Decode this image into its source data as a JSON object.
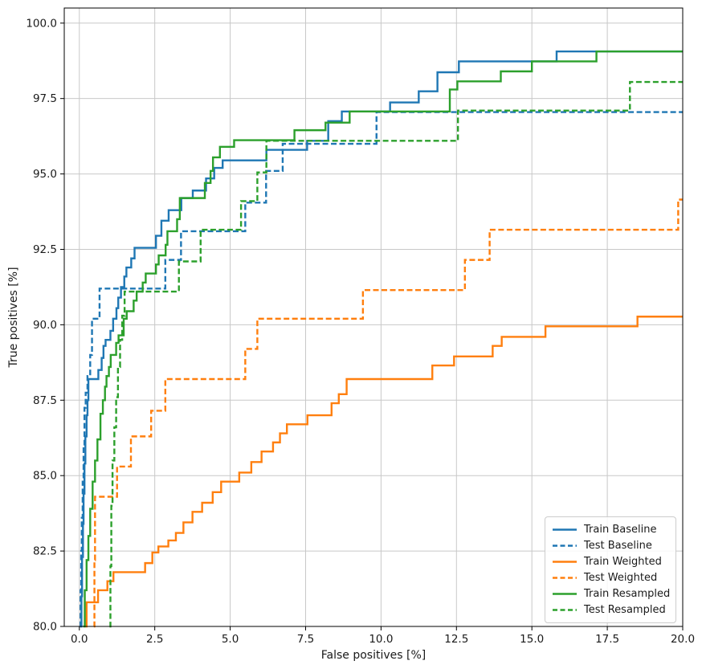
{
  "figure": {
    "background": "#ffffff"
  },
  "axes": {
    "xlabel": "False positives [%]",
    "ylabel": "True positives [%]",
    "x_ticks": [
      0.0,
      2.5,
      5.0,
      7.5,
      10.0,
      12.5,
      15.0,
      17.5,
      20.0
    ],
    "x_tick_labels": [
      "0.0",
      "2.5",
      "5.0",
      "7.5",
      "10.0",
      "12.5",
      "15.0",
      "17.5",
      "20.0"
    ],
    "y_ticks": [
      80.0,
      82.5,
      85.0,
      87.5,
      90.0,
      92.5,
      95.0,
      97.5,
      100.0
    ],
    "y_tick_labels": [
      "80.0",
      "82.5",
      "85.0",
      "87.5",
      "90.0",
      "92.5",
      "95.0",
      "97.5",
      "100.0"
    ],
    "grid_color": "#c8c8c8",
    "spine_color": "#000000",
    "text_color": "#1a1a1a"
  },
  "chart_data": {
    "type": "line",
    "subtype": "roc-step-curves",
    "title": "",
    "xlabel": "False positives [%]",
    "ylabel": "True positives [%]",
    "xlim": [
      -0.5,
      20
    ],
    "ylim": [
      80,
      100.5
    ],
    "grid": true,
    "legend_position": "lower right",
    "step_mode": "post",
    "series": [
      {
        "name": "Train Baseline",
        "color": "#1f77b4",
        "style": "solid",
        "points": [
          [
            0.05,
            80
          ],
          [
            0.07,
            81.0
          ],
          [
            0.09,
            82.3
          ],
          [
            0.12,
            83.4
          ],
          [
            0.14,
            84.4
          ],
          [
            0.17,
            85.4
          ],
          [
            0.2,
            86.3
          ],
          [
            0.24,
            87.0
          ],
          [
            0.27,
            87.5
          ],
          [
            0.3,
            88.2
          ],
          [
            0.63,
            88.5
          ],
          [
            0.74,
            88.9
          ],
          [
            0.8,
            89.3
          ],
          [
            0.87,
            89.5
          ],
          [
            1.03,
            89.8
          ],
          [
            1.12,
            90.2
          ],
          [
            1.23,
            90.55
          ],
          [
            1.29,
            90.9
          ],
          [
            1.38,
            91.25
          ],
          [
            1.49,
            91.6
          ],
          [
            1.56,
            91.9
          ],
          [
            1.72,
            92.2
          ],
          [
            1.83,
            92.55
          ],
          [
            2.54,
            92.95
          ],
          [
            2.72,
            93.45
          ],
          [
            2.96,
            93.8
          ],
          [
            3.38,
            94.2
          ],
          [
            3.76,
            94.45
          ],
          [
            4.2,
            94.85
          ],
          [
            4.47,
            95.2
          ],
          [
            4.75,
            95.45
          ],
          [
            6.2,
            95.8
          ],
          [
            7.55,
            96.1
          ],
          [
            8.25,
            96.75
          ],
          [
            8.7,
            97.07
          ],
          [
            10.3,
            97.37
          ],
          [
            11.25,
            97.74
          ],
          [
            11.87,
            98.37
          ],
          [
            12.58,
            98.73
          ],
          [
            15.82,
            99.06
          ]
        ]
      },
      {
        "name": "Test Baseline",
        "color": "#1f77b4",
        "style": "dashed",
        "points": [
          [
            0.02,
            80
          ],
          [
            0.04,
            81.2
          ],
          [
            0.06,
            82.5
          ],
          [
            0.08,
            83.6
          ],
          [
            0.11,
            84.8
          ],
          [
            0.14,
            86.0
          ],
          [
            0.17,
            87.25
          ],
          [
            0.21,
            87.75
          ],
          [
            0.27,
            88.3
          ],
          [
            0.36,
            89.0
          ],
          [
            0.42,
            90.2
          ],
          [
            0.67,
            91.2
          ],
          [
            2.85,
            92.15
          ],
          [
            3.37,
            93.1
          ],
          [
            5.5,
            94.05
          ],
          [
            6.19,
            95.1
          ],
          [
            6.74,
            96.0
          ],
          [
            9.85,
            97.05
          ]
        ]
      },
      {
        "name": "Train Weighted",
        "color": "#ff7f0e",
        "style": "solid",
        "points": [
          [
            0.21,
            80
          ],
          [
            0.24,
            80.8
          ],
          [
            0.62,
            81.2
          ],
          [
            0.93,
            81.5
          ],
          [
            1.13,
            81.8
          ],
          [
            2.18,
            82.1
          ],
          [
            2.42,
            82.45
          ],
          [
            2.62,
            82.65
          ],
          [
            2.95,
            82.85
          ],
          [
            3.2,
            83.1
          ],
          [
            3.45,
            83.45
          ],
          [
            3.75,
            83.8
          ],
          [
            4.07,
            84.1
          ],
          [
            4.42,
            84.45
          ],
          [
            4.7,
            84.8
          ],
          [
            5.3,
            85.1
          ],
          [
            5.7,
            85.45
          ],
          [
            6.04,
            85.8
          ],
          [
            6.42,
            86.1
          ],
          [
            6.65,
            86.4
          ],
          [
            6.88,
            86.7
          ],
          [
            7.56,
            87.0
          ],
          [
            8.36,
            87.4
          ],
          [
            8.6,
            87.7
          ],
          [
            8.86,
            88.2
          ],
          [
            11.7,
            88.65
          ],
          [
            12.42,
            88.95
          ],
          [
            13.7,
            89.3
          ],
          [
            14.0,
            89.6
          ],
          [
            15.45,
            89.95
          ],
          [
            18.5,
            90.27
          ]
        ]
      },
      {
        "name": "Test Weighted",
        "color": "#ff7f0e",
        "style": "dashed",
        "points": [
          [
            0.48,
            80
          ],
          [
            0.5,
            82.2
          ],
          [
            0.52,
            84.3
          ],
          [
            1.25,
            85.3
          ],
          [
            1.71,
            86.3
          ],
          [
            2.38,
            87.15
          ],
          [
            2.85,
            88.2
          ],
          [
            5.5,
            89.2
          ],
          [
            5.9,
            90.2
          ],
          [
            9.4,
            91.15
          ],
          [
            12.78,
            92.15
          ],
          [
            13.6,
            93.15
          ],
          [
            19.85,
            94.15
          ]
        ]
      },
      {
        "name": "Train Resampled",
        "color": "#2ca02c",
        "style": "solid",
        "points": [
          [
            0.13,
            80
          ],
          [
            0.18,
            81.2
          ],
          [
            0.24,
            82.2
          ],
          [
            0.3,
            83.0
          ],
          [
            0.36,
            83.9
          ],
          [
            0.44,
            84.8
          ],
          [
            0.52,
            85.5
          ],
          [
            0.6,
            86.2
          ],
          [
            0.7,
            87.05
          ],
          [
            0.78,
            87.5
          ],
          [
            0.85,
            87.95
          ],
          [
            0.9,
            88.3
          ],
          [
            0.98,
            88.6
          ],
          [
            1.04,
            89.0
          ],
          [
            1.22,
            89.4
          ],
          [
            1.3,
            89.65
          ],
          [
            1.47,
            90.2
          ],
          [
            1.57,
            90.45
          ],
          [
            1.8,
            90.8
          ],
          [
            1.9,
            91.1
          ],
          [
            2.1,
            91.4
          ],
          [
            2.2,
            91.7
          ],
          [
            2.54,
            92.0
          ],
          [
            2.63,
            92.3
          ],
          [
            2.86,
            92.65
          ],
          [
            2.92,
            93.1
          ],
          [
            3.24,
            93.5
          ],
          [
            3.33,
            94.2
          ],
          [
            4.16,
            94.7
          ],
          [
            4.35,
            95.1
          ],
          [
            4.43,
            95.55
          ],
          [
            4.66,
            95.9
          ],
          [
            5.13,
            96.12
          ],
          [
            7.13,
            96.45
          ],
          [
            8.16,
            96.7
          ],
          [
            8.96,
            97.07
          ],
          [
            12.28,
            97.8
          ],
          [
            12.53,
            98.07
          ],
          [
            13.97,
            98.4
          ],
          [
            15.0,
            98.73
          ],
          [
            17.14,
            99.06
          ]
        ]
      },
      {
        "name": "Test Resampled",
        "color": "#2ca02c",
        "style": "dashed",
        "points": [
          [
            1.0,
            80
          ],
          [
            1.03,
            82.0
          ],
          [
            1.06,
            84.0
          ],
          [
            1.1,
            85.5
          ],
          [
            1.16,
            86.6
          ],
          [
            1.22,
            87.6
          ],
          [
            1.28,
            88.6
          ],
          [
            1.35,
            89.5
          ],
          [
            1.42,
            90.3
          ],
          [
            1.5,
            91.1
          ],
          [
            3.3,
            92.1
          ],
          [
            4.02,
            93.15
          ],
          [
            5.36,
            94.1
          ],
          [
            5.9,
            95.05
          ],
          [
            6.2,
            96.1
          ],
          [
            12.55,
            97.1
          ],
          [
            18.25,
            98.05
          ]
        ]
      }
    ]
  },
  "legend": {
    "items": [
      "Train Baseline",
      "Test Baseline",
      "Train Weighted",
      "Test Weighted",
      "Train Resampled",
      "Test Resampled"
    ]
  }
}
